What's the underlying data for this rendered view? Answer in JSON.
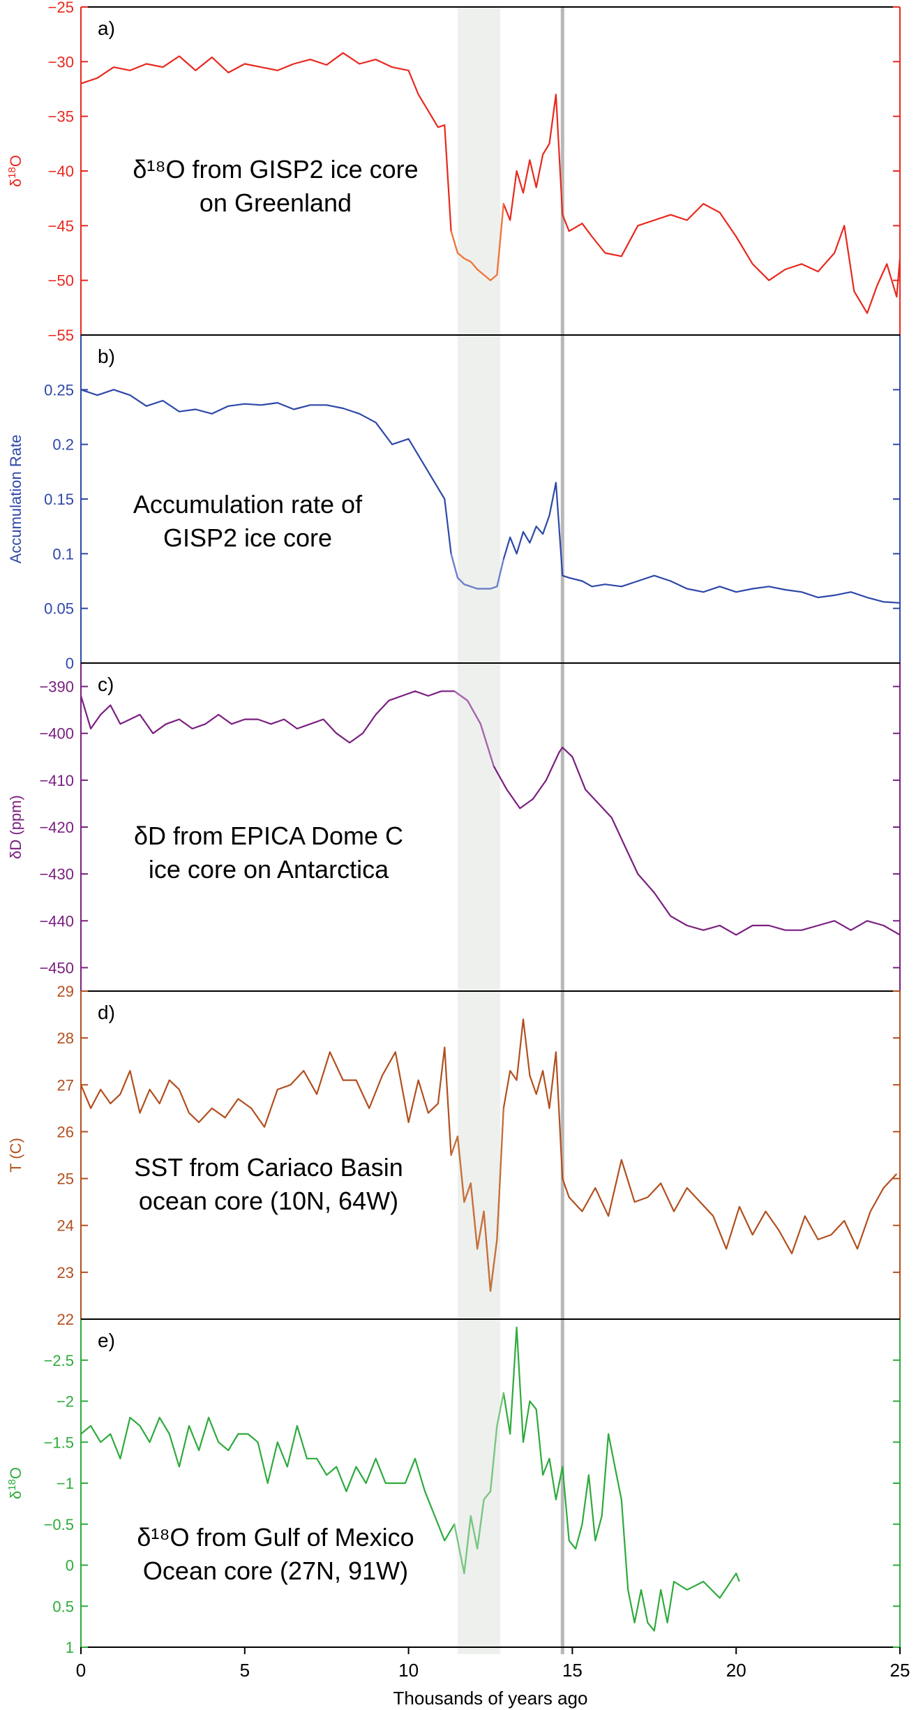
{
  "chart_data": {
    "type": "line",
    "xlabel": "Thousands of years ago",
    "xlim": [
      0,
      25
    ],
    "xticks": [
      0,
      5,
      10,
      15,
      20,
      25
    ],
    "shaded_band": [
      11.5,
      12.8
    ],
    "vertical_line": 14.7,
    "panels": [
      {
        "letter": "a)",
        "ylabel_main": "δ",
        "ylabel_sup": "18",
        "ylabel_tail": "O",
        "annotation": [
          "δ¹⁸O from GISP2 ice core",
          "on Greenland"
        ],
        "color": "#e8281e",
        "highlight_color": "#f07a3c",
        "ylim": [
          -55,
          -25
        ],
        "yticks": [
          -25,
          -30,
          -35,
          -40,
          -45,
          -50,
          -55
        ],
        "ytick_labels": [
          "−25",
          "−30",
          "−35",
          "−40",
          "−45",
          "−50",
          "−55"
        ],
        "inverted": false,
        "x": [
          0,
          0.5,
          1,
          1.5,
          2,
          2.5,
          3,
          3.5,
          4,
          4.5,
          5,
          5.5,
          6,
          6.5,
          7,
          7.5,
          8,
          8.5,
          9,
          9.5,
          10,
          10.3,
          10.6,
          10.9,
          11.1,
          11.3,
          11.5,
          11.7,
          11.9,
          12.1,
          12.3,
          12.5,
          12.7,
          12.9,
          13.1,
          13.3,
          13.5,
          13.7,
          13.9,
          14.1,
          14.3,
          14.5,
          14.7,
          14.9,
          15.3,
          15.6,
          16,
          16.5,
          17,
          17.5,
          18,
          18.5,
          19,
          19.5,
          20,
          20.5,
          21,
          21.5,
          22,
          22.5,
          23,
          23.3,
          23.6,
          24,
          24.3,
          24.6,
          24.9,
          25
        ],
        "values": [
          -32,
          -31.5,
          -30.5,
          -30.8,
          -30.2,
          -30.5,
          -29.5,
          -30.8,
          -29.6,
          -31,
          -30.2,
          -30.5,
          -30.8,
          -30.2,
          -29.8,
          -30.3,
          -29.2,
          -30.2,
          -29.8,
          -30.5,
          -30.8,
          -33,
          -34.5,
          -36,
          -35.8,
          -45.5,
          -47.5,
          -48,
          -48.3,
          -49,
          -49.5,
          -50,
          -49.5,
          -43,
          -44.5,
          -40,
          -42,
          -39,
          -41.5,
          -38.5,
          -37.5,
          -33,
          -44,
          -45.5,
          -44.8,
          -46,
          -47.5,
          -47.8,
          -45,
          -44.5,
          -44,
          -44.5,
          -43,
          -43.8,
          -46,
          -48.5,
          -50,
          -49,
          -48.5,
          -49.2,
          -47.5,
          -45,
          -51,
          -53,
          -50.5,
          -48.5,
          -51.5,
          -48
        ]
      },
      {
        "letter": "b)",
        "ylabel_main": "Accumulation Rate",
        "ylabel_sup": "",
        "ylabel_tail": "",
        "annotation": [
          "Accumulation rate of",
          "GISP2 ice core"
        ],
        "color": "#2e48a8",
        "highlight_color": "#6e82c8",
        "ylim": [
          0,
          0.3
        ],
        "yticks": [
          0,
          0.05,
          0.1,
          0.15,
          0.2,
          0.25
        ],
        "ytick_labels": [
          "0",
          "0.05",
          "0.1",
          "0.15",
          "0.2",
          "0.25"
        ],
        "inverted": false,
        "x": [
          0,
          0.5,
          1,
          1.5,
          2,
          2.5,
          3,
          3.5,
          4,
          4.5,
          5,
          5.5,
          6,
          6.5,
          7,
          7.5,
          8,
          8.5,
          9,
          9.5,
          10,
          10.3,
          10.6,
          10.9,
          11.1,
          11.3,
          11.5,
          11.7,
          11.9,
          12.1,
          12.3,
          12.5,
          12.7,
          12.9,
          13.1,
          13.3,
          13.5,
          13.7,
          13.9,
          14.1,
          14.3,
          14.5,
          14.7,
          14.9,
          15.3,
          15.6,
          16,
          16.5,
          17,
          17.5,
          18,
          18.5,
          19,
          19.5,
          20,
          20.5,
          21,
          21.5,
          22,
          22.5,
          23,
          23.5,
          24,
          24.5,
          25
        ],
        "values": [
          0.25,
          0.245,
          0.25,
          0.245,
          0.235,
          0.24,
          0.23,
          0.232,
          0.228,
          0.235,
          0.237,
          0.236,
          0.238,
          0.232,
          0.236,
          0.236,
          0.233,
          0.228,
          0.22,
          0.2,
          0.205,
          0.19,
          0.175,
          0.16,
          0.15,
          0.1,
          0.078,
          0.072,
          0.07,
          0.068,
          0.068,
          0.068,
          0.07,
          0.095,
          0.115,
          0.1,
          0.12,
          0.11,
          0.125,
          0.118,
          0.135,
          0.165,
          0.08,
          0.078,
          0.075,
          0.07,
          0.072,
          0.07,
          0.075,
          0.08,
          0.075,
          0.068,
          0.065,
          0.07,
          0.065,
          0.068,
          0.07,
          0.067,
          0.065,
          0.06,
          0.062,
          0.065,
          0.06,
          0.056,
          0.055
        ]
      },
      {
        "letter": "c)",
        "ylabel_main": "δD (ppm)",
        "ylabel_sup": "",
        "ylabel_tail": "",
        "annotation": [
          "δD from EPICA Dome C",
          "ice core on Antarctica"
        ],
        "color": "#7a1f80",
        "highlight_color": "#a866ae",
        "ylim": [
          -455,
          -385
        ],
        "yticks": [
          -390,
          -400,
          -410,
          -420,
          -430,
          -440,
          -450
        ],
        "ytick_labels": [
          "−390",
          "−400",
          "−410",
          "−420",
          "−430",
          "−440",
          "−450"
        ],
        "inverted": false,
        "x": [
          0,
          0.3,
          0.6,
          0.9,
          1.2,
          1.5,
          1.8,
          2.2,
          2.6,
          3,
          3.4,
          3.8,
          4.2,
          4.6,
          5,
          5.4,
          5.8,
          6.2,
          6.6,
          7,
          7.4,
          7.8,
          8.2,
          8.6,
          9,
          9.4,
          9.8,
          10.2,
          10.6,
          11,
          11.4,
          11.8,
          12.2,
          12.6,
          13,
          13.4,
          13.8,
          14.2,
          14.6,
          14.7,
          15,
          15.4,
          15.8,
          16.2,
          16.6,
          17,
          17.5,
          18,
          18.5,
          19,
          19.5,
          20,
          20.5,
          21,
          21.5,
          22,
          22.5,
          23,
          23.5,
          24,
          24.5,
          25
        ],
        "values": [
          -392,
          -399,
          -396,
          -394,
          -398,
          -397,
          -396,
          -400,
          -398,
          -397,
          -399,
          -398,
          -396,
          -398,
          -397,
          -397,
          -398,
          -397,
          -399,
          -398,
          -397,
          -400,
          -402,
          -400,
          -396,
          -393,
          -392,
          -391,
          -392,
          -391,
          -391,
          -393,
          -398,
          -407,
          -412,
          -416,
          -414,
          -410,
          -404,
          -403,
          -405,
          -412,
          -415,
          -418,
          -424,
          -430,
          -434,
          -439,
          -441,
          -442,
          -441,
          -443,
          -441,
          -441,
          -442,
          -442,
          -441,
          -440,
          -442,
          -440,
          -441,
          -443
        ]
      },
      {
        "letter": "d)",
        "ylabel_main": "T (C)",
        "ylabel_sup": "",
        "ylabel_tail": "",
        "annotation": [
          "SST from Cariaco Basin",
          "ocean core (10N, 64W)"
        ],
        "color": "#b24f1e",
        "highlight_color": "#c8703a",
        "ylim": [
          22,
          29
        ],
        "yticks": [
          22,
          23,
          24,
          25,
          26,
          27,
          28,
          29
        ],
        "ytick_labels": [
          "22",
          "23",
          "24",
          "25",
          "26",
          "27",
          "28",
          "29"
        ],
        "inverted": false,
        "x": [
          0,
          0.3,
          0.6,
          0.9,
          1.2,
          1.5,
          1.8,
          2.1,
          2.4,
          2.7,
          3,
          3.3,
          3.6,
          4,
          4.4,
          4.8,
          5.2,
          5.6,
          6,
          6.4,
          6.8,
          7.2,
          7.6,
          8,
          8.4,
          8.8,
          9.2,
          9.6,
          10,
          10.3,
          10.6,
          10.9,
          11.1,
          11.3,
          11.5,
          11.7,
          11.9,
          12.1,
          12.3,
          12.5,
          12.7,
          12.9,
          13.1,
          13.3,
          13.5,
          13.7,
          13.9,
          14.1,
          14.3,
          14.5,
          14.7,
          14.9,
          15.3,
          15.7,
          16.1,
          16.5,
          16.9,
          17.3,
          17.7,
          18.1,
          18.5,
          18.9,
          19.3,
          19.7,
          20.1,
          20.5,
          20.9,
          21.3,
          21.7,
          22.1,
          22.5,
          22.9,
          23.3,
          23.7,
          24.1,
          24.5,
          24.9
        ],
        "values": [
          27,
          26.5,
          26.9,
          26.6,
          26.8,
          27.3,
          26.4,
          26.9,
          26.6,
          27.1,
          26.9,
          26.4,
          26.2,
          26.5,
          26.3,
          26.7,
          26.5,
          26.1,
          26.9,
          27,
          27.3,
          26.8,
          27.7,
          27.1,
          27.1,
          26.5,
          27.2,
          27.7,
          26.2,
          27.1,
          26.4,
          26.6,
          27.8,
          25.5,
          25.9,
          24.5,
          24.9,
          23.5,
          24.3,
          22.6,
          23.7,
          26.5,
          27.3,
          27.1,
          28.4,
          27.2,
          26.8,
          27.3,
          26.5,
          27.7,
          25,
          24.6,
          24.3,
          24.8,
          24.2,
          25.4,
          24.5,
          24.6,
          24.9,
          24.3,
          24.8,
          24.5,
          24.2,
          23.5,
          24.4,
          23.8,
          24.3,
          23.9,
          23.4,
          24.2,
          23.7,
          23.8,
          24.1,
          23.5,
          24.3,
          24.8,
          25.1
        ]
      },
      {
        "letter": "e)",
        "ylabel_main": "δ",
        "ylabel_sup": "18",
        "ylabel_tail": "O",
        "annotation": [
          "δ¹⁸O from Gulf of Mexico",
          "Ocean core (27N, 91W)"
        ],
        "color": "#2eaa3c",
        "highlight_color": "#7cc884",
        "ylim": [
          1,
          -3
        ],
        "yticks": [
          1,
          0.5,
          0,
          -0.5,
          -1,
          -1.5,
          -2,
          -2.5
        ],
        "ytick_labels": [
          "1",
          "0.5",
          "0",
          "−0.5",
          "−1",
          "−1.5",
          "−2",
          "−2.5"
        ],
        "inverted": true,
        "x": [
          0,
          0.3,
          0.6,
          0.9,
          1.2,
          1.5,
          1.8,
          2.1,
          2.4,
          2.7,
          3,
          3.3,
          3.6,
          3.9,
          4.2,
          4.5,
          4.8,
          5.1,
          5.4,
          5.7,
          6,
          6.3,
          6.6,
          6.9,
          7.2,
          7.5,
          7.8,
          8.1,
          8.4,
          8.7,
          9,
          9.3,
          9.6,
          9.9,
          10.2,
          10.5,
          10.8,
          11.1,
          11.4,
          11.7,
          11.9,
          12.1,
          12.3,
          12.5,
          12.7,
          12.9,
          13.1,
          13.3,
          13.5,
          13.7,
          13.9,
          14.1,
          14.3,
          14.5,
          14.7,
          14.9,
          15.1,
          15.3,
          15.5,
          15.7,
          15.9,
          16.1,
          16.3,
          16.5,
          16.7,
          16.9,
          17.1,
          17.3,
          17.5,
          17.7,
          17.9,
          18.1,
          18.5,
          19,
          19.5,
          20,
          20.1
        ],
        "values": [
          -1.6,
          -1.7,
          -1.5,
          -1.6,
          -1.3,
          -1.8,
          -1.7,
          -1.5,
          -1.8,
          -1.6,
          -1.2,
          -1.7,
          -1.4,
          -1.8,
          -1.5,
          -1.4,
          -1.6,
          -1.6,
          -1.5,
          -1,
          -1.5,
          -1.2,
          -1.7,
          -1.3,
          -1.3,
          -1.1,
          -1.2,
          -0.9,
          -1.2,
          -1,
          -1.3,
          -1,
          -1,
          -1,
          -1.3,
          -0.9,
          -0.6,
          -0.3,
          -0.5,
          0.1,
          -0.6,
          -0.2,
          -0.8,
          -0.9,
          -1.7,
          -2.1,
          -1.6,
          -2.9,
          -1.5,
          -2.0,
          -1.9,
          -1.1,
          -1.3,
          -0.8,
          -1.2,
          -0.3,
          -0.2,
          -0.5,
          -1.1,
          -0.3,
          -0.6,
          -1.6,
          -1.2,
          -0.8,
          0.3,
          0.7,
          0.3,
          0.7,
          0.8,
          0.3,
          0.7,
          0.2,
          0.3,
          0.2,
          0.4,
          0.1,
          0.2
        ]
      }
    ]
  }
}
